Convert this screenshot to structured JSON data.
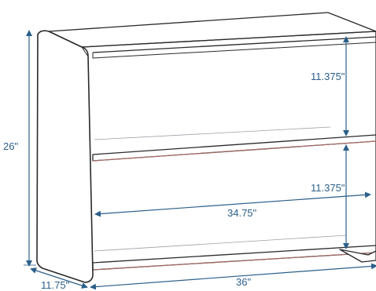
{
  "colors": {
    "outline": "#2a2a2a",
    "dimension": "#2b5f8a",
    "shelf_edge_accent": "#b5706a"
  },
  "dimensions": {
    "height": "26\"",
    "depth": "11.75\"",
    "width": "36\"",
    "inner_width": "34.75\"",
    "upper_shelf_clearance": "11.375\"",
    "lower_shelf_clearance": "11.375\""
  }
}
